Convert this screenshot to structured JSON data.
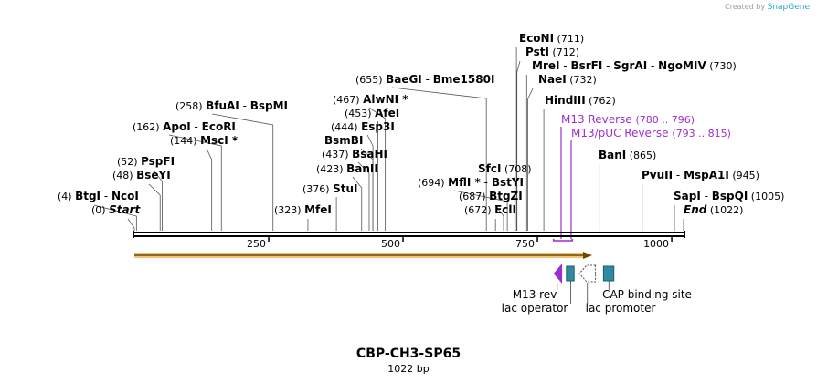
{
  "credit": {
    "prefix": "Created by",
    "brand": "SnapGene"
  },
  "plasmid": {
    "name": "CBP-CH3-SP65",
    "length_label": "1022 bp",
    "length": 1022
  },
  "colors": {
    "primer": "#9b2fd1",
    "feature": "#2e8aa0",
    "cds": "#f5a623",
    "backbone": "#000000"
  },
  "ruler": {
    "ticks": [
      250,
      500,
      750,
      1000
    ]
  },
  "sites": [
    {
      "pos": "(0)",
      "name": "Start",
      "italic": true,
      "x": 0
    },
    {
      "pos": "(4)",
      "name": "BtgI",
      "extra": "NcoI",
      "x": 4
    },
    {
      "pos": "(48)",
      "name": "BseYI",
      "x": 48
    },
    {
      "pos": "(52)",
      "name": "PspFI",
      "x": 52
    },
    {
      "pos": "(144)",
      "name": "MscI *",
      "x": 144
    },
    {
      "pos": "(162)",
      "name": "ApoI",
      "extra": "EcoRI",
      "x": 162
    },
    {
      "pos": "(258)",
      "name": "BfuAI",
      "extra": "BspMI",
      "x": 258
    },
    {
      "pos": "(323)",
      "name": "MfeI",
      "x": 323
    },
    {
      "pos": "(376)",
      "name": "StuI",
      "x": 376
    },
    {
      "pos": "(423)",
      "name": "BanII",
      "x": 423
    },
    {
      "pos": "(437)",
      "name": "BsaHI",
      "x": 437
    },
    {
      "name": "BsmBI",
      "x": 444
    },
    {
      "pos": "(444)",
      "name": "Esp3I",
      "x": 444
    },
    {
      "pos": "(453)",
      "name": "AfeI",
      "x": 453
    },
    {
      "pos": "(467)",
      "name": "AlwNI *",
      "x": 467
    },
    {
      "pos": "(655)",
      "name": "BaeGI",
      "extra": "Bme1580I",
      "x": 655
    },
    {
      "pos": "(672)",
      "name": "EclI",
      "x": 672
    },
    {
      "pos": "(687)",
      "name": "BtgZI",
      "x": 687
    },
    {
      "pos": "(694)",
      "name": "MflI *",
      "extra": "BstYI",
      "x": 694
    },
    {
      "pos": "(708)",
      "name": "SfcI",
      "x": 708
    },
    {
      "pos": "(711)",
      "name": "EcoNI",
      "x": 711
    },
    {
      "pos": "(712)",
      "name": "PstI",
      "x": 712
    },
    {
      "pos": "(730)",
      "name": "MreI",
      "extra": "BsrFI",
      "extra2": "SgrAI",
      "extra3": "NgoMIV",
      "x": 730
    },
    {
      "pos": "(732)",
      "name": "NaeI",
      "x": 732
    },
    {
      "pos": "(762)",
      "name": "HindIII",
      "x": 762
    },
    {
      "pos": "(865)",
      "name": "BanI",
      "x": 865
    },
    {
      "pos": "(945)",
      "name": "PvuII",
      "extra": "MspA1I",
      "x": 945
    },
    {
      "pos": "(1005)",
      "name": "SapI",
      "extra": "BspQI",
      "x": 1005
    },
    {
      "pos": "(1022)",
      "name": "End",
      "italic": true,
      "x": 1022
    }
  ],
  "primers": [
    {
      "name": "M13 Reverse",
      "range": "(780 .. 796)",
      "start": 780,
      "end": 796
    },
    {
      "name": "M13/pUC Reverse",
      "range": "(793 .. 815)",
      "start": 793,
      "end": 815
    }
  ],
  "features": [
    {
      "name": "M13 rev",
      "type": "primer",
      "start": 780,
      "end": 796
    },
    {
      "name": "lac operator",
      "type": "feature",
      "start": 804,
      "end": 820
    },
    {
      "name": "lac promoter",
      "type": "promoter",
      "start": 828,
      "end": 858
    },
    {
      "name": "CAP binding site",
      "type": "feature",
      "start": 873,
      "end": 894
    }
  ]
}
